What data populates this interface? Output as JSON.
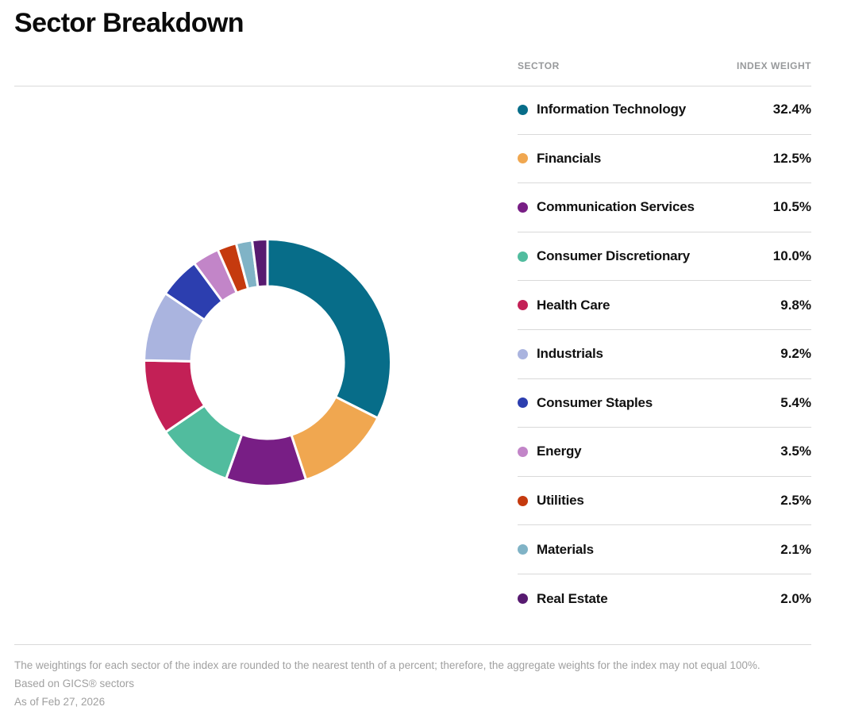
{
  "page": {
    "title": "Sector Breakdown"
  },
  "table": {
    "headers": {
      "sector": "SECTOR",
      "weight": "INDEX WEIGHT"
    },
    "rows": [
      {
        "label": "Information Technology",
        "weight": "32.4%",
        "color": "#076D89"
      },
      {
        "label": "Financials",
        "weight": "12.5%",
        "color": "#F0A750"
      },
      {
        "label": "Communication Services",
        "weight": "10.5%",
        "color": "#781E85"
      },
      {
        "label": "Consumer Discretionary",
        "weight": "10.0%",
        "color": "#51BC9E"
      },
      {
        "label": "Health Care",
        "weight": "9.8%",
        "color": "#C32056"
      },
      {
        "label": "Industrials",
        "weight": "9.2%",
        "color": "#AAB4DF"
      },
      {
        "label": "Consumer Staples",
        "weight": "5.4%",
        "color": "#2C3EAF"
      },
      {
        "label": "Energy",
        "weight": "3.5%",
        "color": "#C285C8"
      },
      {
        "label": "Utilities",
        "weight": "2.5%",
        "color": "#C53A0E"
      },
      {
        "label": "Materials",
        "weight": "2.1%",
        "color": "#80B3C6"
      },
      {
        "label": "Real Estate",
        "weight": "2.0%",
        "color": "#571A70"
      }
    ]
  },
  "chart_data": {
    "type": "pie",
    "subtype": "donut",
    "title": "Sector Breakdown",
    "categories": [
      "Information Technology",
      "Financials",
      "Communication Services",
      "Consumer Discretionary",
      "Health Care",
      "Industrials",
      "Consumer Staples",
      "Energy",
      "Utilities",
      "Materials",
      "Real Estate"
    ],
    "values": [
      32.4,
      12.5,
      10.5,
      10.0,
      9.8,
      9.2,
      5.4,
      3.5,
      2.5,
      2.1,
      2.0
    ],
    "colors": [
      "#076D89",
      "#F0A750",
      "#781E85",
      "#51BC9E",
      "#C32056",
      "#AAB4DF",
      "#2C3EAF",
      "#C285C8",
      "#C53A0E",
      "#80B3C6",
      "#571A70"
    ],
    "start_angle_deg": 0,
    "direction": "clockwise",
    "inner_radius_ratio": 0.618,
    "gap_color": "#ffffff",
    "legend_position": "right-table"
  },
  "footnotes": [
    "The weightings for each sector of the index are rounded to the nearest tenth of a percent; therefore, the aggregate weights for the index may not equal 100%.",
    "Based on GICS® sectors",
    "As of Feb 27, 2026"
  ]
}
